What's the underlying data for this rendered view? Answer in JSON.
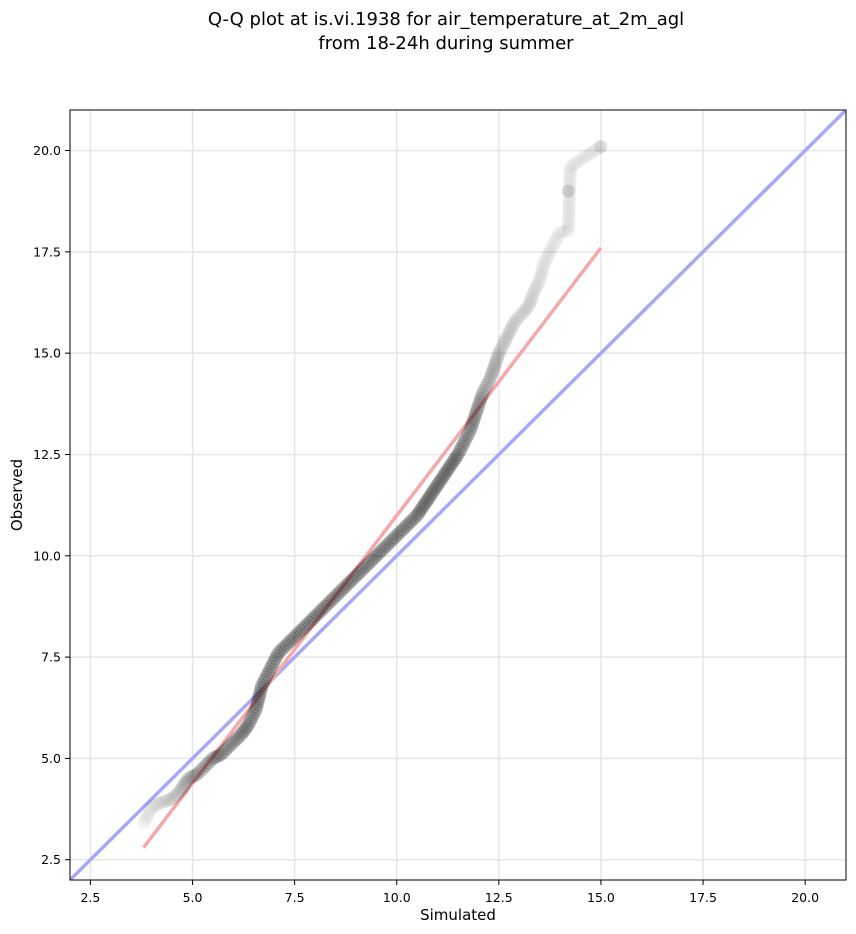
{
  "chart_data": {
    "type": "scatter",
    "title_line1": "Q-Q plot at is.vi.1938 for air_temperature_at_2m_agl",
    "title_line2": "from 18-24h during summer",
    "xlabel": "Simulated",
    "ylabel": "Observed",
    "xlim": [
      2.0,
      21.0
    ],
    "ylim": [
      2.0,
      21.0
    ],
    "xticks": [
      2.5,
      5.0,
      7.5,
      10.0,
      12.5,
      15.0,
      17.5,
      20.0
    ],
    "yticks": [
      2.5,
      5.0,
      7.5,
      10.0,
      12.5,
      15.0,
      17.5,
      20.0
    ],
    "xtick_labels": [
      "2.5",
      "5.0",
      "7.5",
      "10.0",
      "12.5",
      "15.0",
      "17.5",
      "20.0"
    ],
    "ytick_labels": [
      "2.5",
      "5.0",
      "7.5",
      "10.0",
      "12.5",
      "15.0",
      "17.5",
      "20.0"
    ],
    "grid": true,
    "reference_line": {
      "color": "#a8a8f5",
      "x": [
        2.0,
        21.0
      ],
      "y": [
        2.0,
        21.0
      ]
    },
    "fit_line": {
      "color": "#f5a8a8",
      "x": [
        3.8,
        15.0
      ],
      "y": [
        2.8,
        17.6
      ]
    },
    "point_color": "#000000",
    "quantiles": {
      "x": [
        3.8,
        3.9,
        4.0,
        4.2,
        4.5,
        4.7,
        4.9,
        5.1,
        5.3,
        5.5,
        5.7,
        5.9,
        6.1,
        6.2,
        6.35,
        6.45,
        6.55,
        6.6,
        6.65,
        6.7,
        6.8,
        6.9,
        7.0,
        7.1,
        7.2,
        7.35,
        7.5,
        7.7,
        7.9,
        8.1,
        8.3,
        8.5,
        8.7,
        8.9,
        9.1,
        9.3,
        9.5,
        9.7,
        9.9,
        10.1,
        10.3,
        10.5,
        10.7,
        10.9,
        11.1,
        11.3,
        11.5,
        11.6,
        11.7,
        11.8,
        11.9,
        12.0,
        12.1,
        12.2,
        12.3,
        12.4,
        12.5,
        12.6,
        12.75,
        12.9,
        13.1,
        13.25,
        13.35,
        13.5,
        13.6,
        13.75,
        13.85,
        14.0,
        14.2,
        14.25,
        15.0
      ],
      "y": [
        3.4,
        3.6,
        3.8,
        3.9,
        4.0,
        4.2,
        4.5,
        4.6,
        4.8,
        5.0,
        5.1,
        5.3,
        5.5,
        5.6,
        5.8,
        6.0,
        6.2,
        6.4,
        6.6,
        6.8,
        7.0,
        7.2,
        7.4,
        7.6,
        7.7,
        7.85,
        8.0,
        8.2,
        8.4,
        8.6,
        8.8,
        9.0,
        9.2,
        9.4,
        9.6,
        9.8,
        10.0,
        10.2,
        10.4,
        10.6,
        10.8,
        11.0,
        11.3,
        11.6,
        11.9,
        12.2,
        12.5,
        12.7,
        12.9,
        13.1,
        13.4,
        13.7,
        14.0,
        14.2,
        14.4,
        14.7,
        15.0,
        15.2,
        15.5,
        15.8,
        16.0,
        16.2,
        16.5,
        16.8,
        17.2,
        17.5,
        17.7,
        18.0,
        18.0,
        19.6,
        20.1
      ],
      "opacity": [
        0.15,
        0.15,
        0.15,
        0.2,
        0.3,
        0.35,
        0.45,
        0.55,
        0.6,
        0.65,
        0.7,
        0.72,
        0.75,
        0.78,
        0.8,
        0.8,
        0.8,
        0.8,
        0.8,
        0.8,
        0.8,
        0.8,
        0.8,
        0.8,
        0.8,
        0.8,
        0.8,
        0.8,
        0.8,
        0.8,
        0.8,
        0.8,
        0.8,
        0.8,
        0.8,
        0.8,
        0.8,
        0.8,
        0.8,
        0.8,
        0.8,
        0.8,
        0.8,
        0.8,
        0.8,
        0.8,
        0.8,
        0.8,
        0.75,
        0.7,
        0.65,
        0.6,
        0.55,
        0.5,
        0.45,
        0.4,
        0.35,
        0.3,
        0.28,
        0.26,
        0.24,
        0.22,
        0.2,
        0.18,
        0.16,
        0.15,
        0.14,
        0.12,
        0.12,
        0.12,
        0.12
      ]
    },
    "extra_points": [
      {
        "x": 14.2,
        "y": 19.0
      }
    ]
  }
}
